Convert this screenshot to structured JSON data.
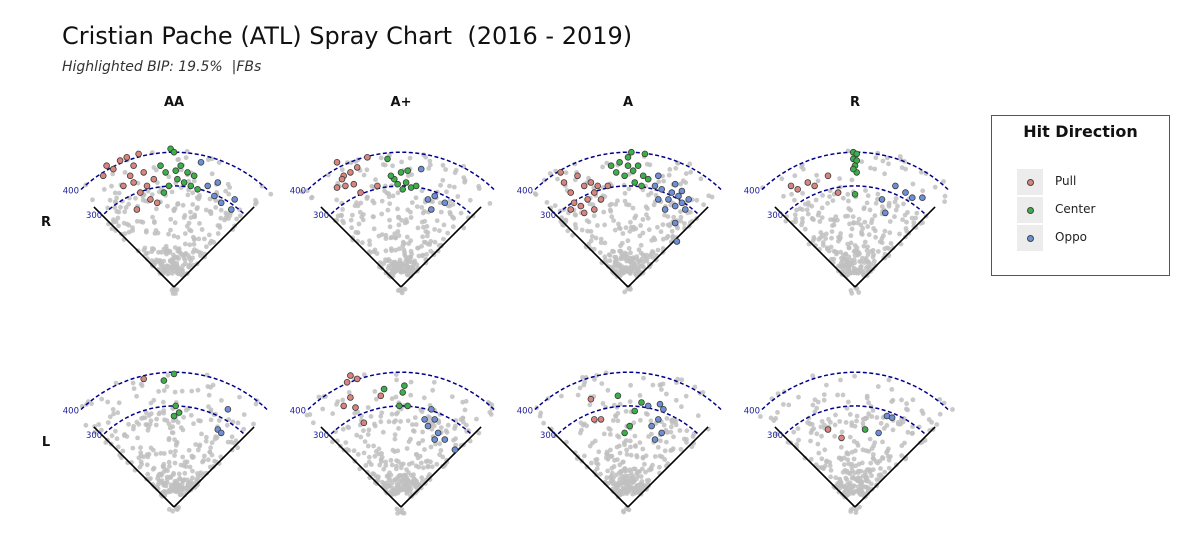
{
  "header": {
    "title": "Cristian Pache (ATL) Spray Chart  (2016 - 2019)",
    "subtitle": "Highlighted BIP: 19.5%  |FBs"
  },
  "legend": {
    "title": "Hit Direction",
    "items": [
      {
        "label": "Pull",
        "color": "#d9847f"
      },
      {
        "label": "Center",
        "color": "#3cae4a"
      },
      {
        "label": "Oppo",
        "color": "#6e8fd6"
      }
    ]
  },
  "chart_data": {
    "type": "scatter",
    "columns": [
      "AA",
      "A+",
      "A",
      "R"
    ],
    "rows": [
      "R",
      "L"
    ],
    "distance_labels": [
      "400",
      "300"
    ],
    "distance_arcs_ft": [
      400,
      300
    ],
    "x_range_ft": [
      -250,
      250
    ],
    "y_range_ft": [
      -20,
      460
    ],
    "background_color": "#c0c0c0",
    "arc_color": "#00008b",
    "series_colors": {
      "Pull": "#d9847f",
      "Center": "#3cae4a",
      "Oppo": "#6e8fd6"
    },
    "panels": [
      {
        "col": "AA",
        "row": "R",
        "points": [
          {
            "x": -210,
            "y": 330,
            "dir": "Pull"
          },
          {
            "x": -200,
            "y": 360,
            "dir": "Pull"
          },
          {
            "x": -180,
            "y": 350,
            "dir": "Pull"
          },
          {
            "x": -160,
            "y": 375,
            "dir": "Pull"
          },
          {
            "x": -140,
            "y": 385,
            "dir": "Pull"
          },
          {
            "x": -120,
            "y": 360,
            "dir": "Pull"
          },
          {
            "x": -105,
            "y": 395,
            "dir": "Pull"
          },
          {
            "x": -130,
            "y": 330,
            "dir": "Pull"
          },
          {
            "x": -150,
            "y": 300,
            "dir": "Pull"
          },
          {
            "x": -100,
            "y": 280,
            "dir": "Pull"
          },
          {
            "x": -80,
            "y": 300,
            "dir": "Pull"
          },
          {
            "x": -60,
            "y": 320,
            "dir": "Pull"
          },
          {
            "x": -70,
            "y": 260,
            "dir": "Pull"
          },
          {
            "x": -50,
            "y": 250,
            "dir": "Pull"
          },
          {
            "x": -110,
            "y": 230,
            "dir": "Pull"
          },
          {
            "x": -120,
            "y": 310,
            "dir": "Pull"
          },
          {
            "x": -90,
            "y": 340,
            "dir": "Pull"
          },
          {
            "x": -10,
            "y": 410,
            "dir": "Center"
          },
          {
            "x": 0,
            "y": 400,
            "dir": "Center"
          },
          {
            "x": -40,
            "y": 360,
            "dir": "Center"
          },
          {
            "x": -25,
            "y": 340,
            "dir": "Center"
          },
          {
            "x": 5,
            "y": 345,
            "dir": "Center"
          },
          {
            "x": 20,
            "y": 360,
            "dir": "Center"
          },
          {
            "x": 40,
            "y": 340,
            "dir": "Center"
          },
          {
            "x": -15,
            "y": 300,
            "dir": "Center"
          },
          {
            "x": 10,
            "y": 320,
            "dir": "Center"
          },
          {
            "x": 30,
            "y": 310,
            "dir": "Center"
          },
          {
            "x": 50,
            "y": 300,
            "dir": "Center"
          },
          {
            "x": -30,
            "y": 280,
            "dir": "Center"
          },
          {
            "x": 60,
            "y": 330,
            "dir": "Center"
          },
          {
            "x": 70,
            "y": 290,
            "dir": "Center"
          },
          {
            "x": 100,
            "y": 300,
            "dir": "Oppo"
          },
          {
            "x": 120,
            "y": 270,
            "dir": "Oppo"
          },
          {
            "x": 140,
            "y": 250,
            "dir": "Oppo"
          },
          {
            "x": 130,
            "y": 310,
            "dir": "Oppo"
          },
          {
            "x": 170,
            "y": 230,
            "dir": "Oppo"
          },
          {
            "x": 180,
            "y": 260,
            "dir": "Oppo"
          },
          {
            "x": 80,
            "y": 370,
            "dir": "Oppo"
          }
        ]
      },
      {
        "col": "A+",
        "row": "R",
        "points": [
          {
            "x": -190,
            "y": 370,
            "dir": "Pull"
          },
          {
            "x": -170,
            "y": 330,
            "dir": "Pull"
          },
          {
            "x": -150,
            "y": 340,
            "dir": "Pull"
          },
          {
            "x": -130,
            "y": 355,
            "dir": "Pull"
          },
          {
            "x": -100,
            "y": 385,
            "dir": "Pull"
          },
          {
            "x": -190,
            "y": 295,
            "dir": "Pull"
          },
          {
            "x": -165,
            "y": 300,
            "dir": "Pull"
          },
          {
            "x": -140,
            "y": 305,
            "dir": "Pull"
          },
          {
            "x": -120,
            "y": 280,
            "dir": "Pull"
          },
          {
            "x": -70,
            "y": 300,
            "dir": "Pull"
          },
          {
            "x": -175,
            "y": 320,
            "dir": "Pull"
          },
          {
            "x": -40,
            "y": 380,
            "dir": "Center"
          },
          {
            "x": -20,
            "y": 320,
            "dir": "Center"
          },
          {
            "x": 0,
            "y": 340,
            "dir": "Center"
          },
          {
            "x": 15,
            "y": 310,
            "dir": "Center"
          },
          {
            "x": 30,
            "y": 295,
            "dir": "Center"
          },
          {
            "x": 45,
            "y": 300,
            "dir": "Center"
          },
          {
            "x": -10,
            "y": 305,
            "dir": "Center"
          },
          {
            "x": 5,
            "y": 290,
            "dir": "Center"
          },
          {
            "x": -30,
            "y": 330,
            "dir": "Center"
          },
          {
            "x": 20,
            "y": 345,
            "dir": "Center"
          },
          {
            "x": 80,
            "y": 260,
            "dir": "Oppo"
          },
          {
            "x": 100,
            "y": 270,
            "dir": "Oppo"
          },
          {
            "x": 90,
            "y": 230,
            "dir": "Oppo"
          },
          {
            "x": 130,
            "y": 250,
            "dir": "Oppo"
          },
          {
            "x": 60,
            "y": 350,
            "dir": "Oppo"
          }
        ]
      },
      {
        "col": "A",
        "row": "R",
        "points": [
          {
            "x": -190,
            "y": 310,
            "dir": "Pull"
          },
          {
            "x": -170,
            "y": 280,
            "dir": "Pull"
          },
          {
            "x": -150,
            "y": 330,
            "dir": "Pull"
          },
          {
            "x": -130,
            "y": 300,
            "dir": "Pull"
          },
          {
            "x": -160,
            "y": 250,
            "dir": "Pull"
          },
          {
            "x": -140,
            "y": 240,
            "dir": "Pull"
          },
          {
            "x": -120,
            "y": 260,
            "dir": "Pull"
          },
          {
            "x": -100,
            "y": 280,
            "dir": "Pull"
          },
          {
            "x": -110,
            "y": 310,
            "dir": "Pull"
          },
          {
            "x": -90,
            "y": 300,
            "dir": "Pull"
          },
          {
            "x": -80,
            "y": 260,
            "dir": "Pull"
          },
          {
            "x": -100,
            "y": 230,
            "dir": "Pull"
          },
          {
            "x": -130,
            "y": 220,
            "dir": "Pull"
          },
          {
            "x": -170,
            "y": 230,
            "dir": "Pull"
          },
          {
            "x": -60,
            "y": 300,
            "dir": "Pull"
          },
          {
            "x": -200,
            "y": 340,
            "dir": "Pull"
          },
          {
            "x": -50,
            "y": 360,
            "dir": "Center"
          },
          {
            "x": -25,
            "y": 370,
            "dir": "Center"
          },
          {
            "x": 0,
            "y": 385,
            "dir": "Center"
          },
          {
            "x": 0,
            "y": 360,
            "dir": "Center"
          },
          {
            "x": 15,
            "y": 345,
            "dir": "Center"
          },
          {
            "x": 30,
            "y": 360,
            "dir": "Center"
          },
          {
            "x": 45,
            "y": 330,
            "dir": "Center"
          },
          {
            "x": 60,
            "y": 320,
            "dir": "Center"
          },
          {
            "x": 40,
            "y": 300,
            "dir": "Center"
          },
          {
            "x": 20,
            "y": 310,
            "dir": "Center"
          },
          {
            "x": -10,
            "y": 330,
            "dir": "Center"
          },
          {
            "x": -35,
            "y": 340,
            "dir": "Center"
          },
          {
            "x": 10,
            "y": 400,
            "dir": "Center"
          },
          {
            "x": 50,
            "y": 395,
            "dir": "Center"
          },
          {
            "x": 80,
            "y": 300,
            "dir": "Oppo"
          },
          {
            "x": 100,
            "y": 290,
            "dir": "Oppo"
          },
          {
            "x": 120,
            "y": 260,
            "dir": "Oppo"
          },
          {
            "x": 140,
            "y": 240,
            "dir": "Oppo"
          },
          {
            "x": 150,
            "y": 270,
            "dir": "Oppo"
          },
          {
            "x": 160,
            "y": 250,
            "dir": "Oppo"
          },
          {
            "x": 110,
            "y": 230,
            "dir": "Oppo"
          },
          {
            "x": 130,
            "y": 280,
            "dir": "Oppo"
          },
          {
            "x": 90,
            "y": 260,
            "dir": "Oppo"
          },
          {
            "x": 140,
            "y": 190,
            "dir": "Oppo"
          },
          {
            "x": 170,
            "y": 230,
            "dir": "Oppo"
          },
          {
            "x": 180,
            "y": 260,
            "dir": "Oppo"
          },
          {
            "x": 90,
            "y": 330,
            "dir": "Oppo"
          },
          {
            "x": 140,
            "y": 305,
            "dir": "Oppo"
          },
          {
            "x": 160,
            "y": 285,
            "dir": "Oppo"
          },
          {
            "x": 145,
            "y": 135,
            "dir": "Oppo"
          }
        ]
      },
      {
        "col": "R",
        "row": "R",
        "points": [
          {
            "x": -190,
            "y": 300,
            "dir": "Pull"
          },
          {
            "x": -170,
            "y": 290,
            "dir": "Pull"
          },
          {
            "x": -140,
            "y": 310,
            "dir": "Pull"
          },
          {
            "x": -120,
            "y": 300,
            "dir": "Pull"
          },
          {
            "x": -80,
            "y": 330,
            "dir": "Pull"
          },
          {
            "x": -50,
            "y": 280,
            "dir": "Pull"
          },
          {
            "x": -5,
            "y": 400,
            "dir": "Center"
          },
          {
            "x": 5,
            "y": 395,
            "dir": "Center"
          },
          {
            "x": -5,
            "y": 380,
            "dir": "Center"
          },
          {
            "x": 5,
            "y": 375,
            "dir": "Center"
          },
          {
            "x": 0,
            "y": 360,
            "dir": "Center"
          },
          {
            "x": 5,
            "y": 340,
            "dir": "Center"
          },
          {
            "x": -5,
            "y": 350,
            "dir": "Center"
          },
          {
            "x": 0,
            "y": 275,
            "dir": "Center"
          },
          {
            "x": 80,
            "y": 260,
            "dir": "Oppo"
          },
          {
            "x": 120,
            "y": 300,
            "dir": "Oppo"
          },
          {
            "x": 150,
            "y": 280,
            "dir": "Oppo"
          },
          {
            "x": 170,
            "y": 265,
            "dir": "Oppo"
          },
          {
            "x": 200,
            "y": 265,
            "dir": "Oppo"
          },
          {
            "x": 90,
            "y": 220,
            "dir": "Oppo"
          }
        ]
      },
      {
        "col": "AA",
        "row": "L",
        "points": [
          {
            "x": -90,
            "y": 380,
            "dir": "Pull"
          },
          {
            "x": -30,
            "y": 375,
            "dir": "Center"
          },
          {
            "x": 0,
            "y": 395,
            "dir": "Center"
          },
          {
            "x": 5,
            "y": 300,
            "dir": "Center"
          },
          {
            "x": 15,
            "y": 280,
            "dir": "Center"
          },
          {
            "x": 0,
            "y": 270,
            "dir": "Center"
          },
          {
            "x": 130,
            "y": 230,
            "dir": "Oppo"
          },
          {
            "x": 140,
            "y": 220,
            "dir": "Oppo"
          },
          {
            "x": 160,
            "y": 290,
            "dir": "Oppo"
          }
        ]
      },
      {
        "col": "A+",
        "row": "L",
        "points": [
          {
            "x": -150,
            "y": 390,
            "dir": "Pull"
          },
          {
            "x": -160,
            "y": 370,
            "dir": "Pull"
          },
          {
            "x": -130,
            "y": 380,
            "dir": "Pull"
          },
          {
            "x": -150,
            "y": 325,
            "dir": "Pull"
          },
          {
            "x": -170,
            "y": 300,
            "dir": "Pull"
          },
          {
            "x": -135,
            "y": 295,
            "dir": "Pull"
          },
          {
            "x": -110,
            "y": 250,
            "dir": "Pull"
          },
          {
            "x": -60,
            "y": 330,
            "dir": "Pull"
          },
          {
            "x": -50,
            "y": 350,
            "dir": "Center"
          },
          {
            "x": -5,
            "y": 300,
            "dir": "Center"
          },
          {
            "x": 5,
            "y": 340,
            "dir": "Center"
          },
          {
            "x": 20,
            "y": 300,
            "dir": "Center"
          },
          {
            "x": 10,
            "y": 360,
            "dir": "Center"
          },
          {
            "x": 70,
            "y": 260,
            "dir": "Oppo"
          },
          {
            "x": 80,
            "y": 240,
            "dir": "Oppo"
          },
          {
            "x": 100,
            "y": 260,
            "dir": "Oppo"
          },
          {
            "x": 110,
            "y": 220,
            "dir": "Oppo"
          },
          {
            "x": 130,
            "y": 200,
            "dir": "Oppo"
          },
          {
            "x": 100,
            "y": 200,
            "dir": "Oppo"
          },
          {
            "x": 90,
            "y": 290,
            "dir": "Oppo"
          },
          {
            "x": 160,
            "y": 170,
            "dir": "Oppo"
          }
        ]
      },
      {
        "col": "A",
        "row": "L",
        "points": [
          {
            "x": -110,
            "y": 320,
            "dir": "Pull"
          },
          {
            "x": -100,
            "y": 260,
            "dir": "Pull"
          },
          {
            "x": -80,
            "y": 260,
            "dir": "Pull"
          },
          {
            "x": -30,
            "y": 330,
            "dir": "Center"
          },
          {
            "x": -10,
            "y": 220,
            "dir": "Center"
          },
          {
            "x": 20,
            "y": 285,
            "dir": "Center"
          },
          {
            "x": 40,
            "y": 310,
            "dir": "Center"
          },
          {
            "x": 5,
            "y": 240,
            "dir": "Center"
          },
          {
            "x": 60,
            "y": 300,
            "dir": "Oppo"
          },
          {
            "x": 70,
            "y": 240,
            "dir": "Oppo"
          },
          {
            "x": 90,
            "y": 260,
            "dir": "Oppo"
          },
          {
            "x": 100,
            "y": 220,
            "dir": "Oppo"
          },
          {
            "x": 80,
            "y": 200,
            "dir": "Oppo"
          },
          {
            "x": 95,
            "y": 305,
            "dir": "Oppo"
          },
          {
            "x": 105,
            "y": 290,
            "dir": "Oppo"
          }
        ]
      },
      {
        "col": "R",
        "row": "L",
        "points": [
          {
            "x": -80,
            "y": 230,
            "dir": "Pull"
          },
          {
            "x": -40,
            "y": 205,
            "dir": "Pull"
          },
          {
            "x": 30,
            "y": 230,
            "dir": "Center"
          },
          {
            "x": 70,
            "y": 220,
            "dir": "Oppo"
          },
          {
            "x": 95,
            "y": 270,
            "dir": "Oppo"
          },
          {
            "x": 110,
            "y": 265,
            "dir": "Oppo"
          }
        ]
      }
    ]
  }
}
